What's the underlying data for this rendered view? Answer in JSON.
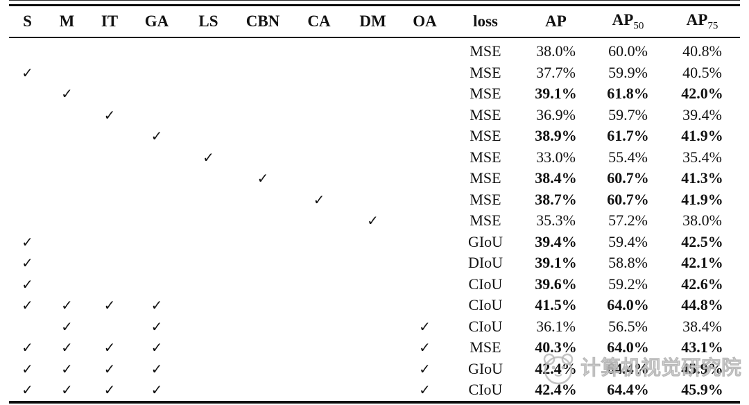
{
  "table": {
    "check_glyph": "✓",
    "columns": [
      {
        "key": "S",
        "label": "S"
      },
      {
        "key": "M",
        "label": "M"
      },
      {
        "key": "IT",
        "label": "IT"
      },
      {
        "key": "GA",
        "label": "GA"
      },
      {
        "key": "LS",
        "label": "LS"
      },
      {
        "key": "CBN",
        "label": "CBN"
      },
      {
        "key": "CA",
        "label": "CA"
      },
      {
        "key": "DM",
        "label": "DM"
      },
      {
        "key": "OA",
        "label": "OA"
      },
      {
        "key": "loss",
        "label": "loss"
      },
      {
        "key": "ap",
        "label": "AP"
      },
      {
        "key": "ap50",
        "label": "AP",
        "sub": "50"
      },
      {
        "key": "ap75",
        "label": "AP",
        "sub": "75"
      }
    ],
    "rows": [
      {
        "checks": [],
        "loss": "MSE",
        "ap": "38.0%",
        "ap50": "60.0%",
        "ap75": "40.8%",
        "bold": []
      },
      {
        "checks": [
          "S"
        ],
        "loss": "MSE",
        "ap": "37.7%",
        "ap50": "59.9%",
        "ap75": "40.5%",
        "bold": []
      },
      {
        "checks": [
          "M"
        ],
        "loss": "MSE",
        "ap": "39.1%",
        "ap50": "61.8%",
        "ap75": "42.0%",
        "bold": [
          "ap",
          "ap50",
          "ap75"
        ]
      },
      {
        "checks": [
          "IT"
        ],
        "loss": "MSE",
        "ap": "36.9%",
        "ap50": "59.7%",
        "ap75": "39.4%",
        "bold": []
      },
      {
        "checks": [
          "GA"
        ],
        "loss": "MSE",
        "ap": "38.9%",
        "ap50": "61.7%",
        "ap75": "41.9%",
        "bold": [
          "ap",
          "ap50",
          "ap75"
        ]
      },
      {
        "checks": [
          "LS"
        ],
        "loss": "MSE",
        "ap": "33.0%",
        "ap50": "55.4%",
        "ap75": "35.4%",
        "bold": []
      },
      {
        "checks": [
          "CBN"
        ],
        "loss": "MSE",
        "ap": "38.4%",
        "ap50": "60.7%",
        "ap75": "41.3%",
        "bold": [
          "ap",
          "ap50",
          "ap75"
        ]
      },
      {
        "checks": [
          "CA"
        ],
        "loss": "MSE",
        "ap": "38.7%",
        "ap50": "60.7%",
        "ap75": "41.9%",
        "bold": [
          "ap",
          "ap50",
          "ap75"
        ]
      },
      {
        "checks": [
          "DM"
        ],
        "loss": "MSE",
        "ap": "35.3%",
        "ap50": "57.2%",
        "ap75": "38.0%",
        "bold": []
      },
      {
        "checks": [
          "S"
        ],
        "loss": "GIoU",
        "ap": "39.4%",
        "ap50": "59.4%",
        "ap75": "42.5%",
        "bold": [
          "ap",
          "ap75"
        ]
      },
      {
        "checks": [
          "S"
        ],
        "loss": "DIoU",
        "ap": "39.1%",
        "ap50": "58.8%",
        "ap75": "42.1%",
        "bold": [
          "ap",
          "ap75"
        ]
      },
      {
        "checks": [
          "S"
        ],
        "loss": "CIoU",
        "ap": "39.6%",
        "ap50": "59.2%",
        "ap75": "42.6%",
        "bold": [
          "ap",
          "ap75"
        ]
      },
      {
        "checks": [
          "S",
          "M",
          "IT",
          "GA"
        ],
        "loss": "CIoU",
        "ap": "41.5%",
        "ap50": "64.0%",
        "ap75": "44.8%",
        "bold": [
          "ap",
          "ap50",
          "ap75"
        ]
      },
      {
        "checks": [
          "M",
          "GA",
          "OA"
        ],
        "loss": "CIoU",
        "ap": "36.1%",
        "ap50": "56.5%",
        "ap75": "38.4%",
        "bold": []
      },
      {
        "checks": [
          "S",
          "M",
          "IT",
          "GA",
          "OA"
        ],
        "loss": "MSE",
        "ap": "40.3%",
        "ap50": "64.0%",
        "ap75": "43.1%",
        "bold": [
          "ap",
          "ap50",
          "ap75"
        ]
      },
      {
        "checks": [
          "S",
          "M",
          "IT",
          "GA",
          "OA"
        ],
        "loss": "GIoU",
        "ap": "42.4%",
        "ap50": "64.4%",
        "ap75": "45.9%",
        "bold": [
          "ap",
          "ap50",
          "ap75"
        ]
      },
      {
        "checks": [
          "S",
          "M",
          "IT",
          "GA",
          "OA"
        ],
        "loss": "CIoU",
        "ap": "42.4%",
        "ap50": "64.4%",
        "ap75": "45.9%",
        "bold": [
          "ap",
          "ap50",
          "ap75"
        ]
      }
    ]
  },
  "watermark": {
    "text": "计算机视觉研究院",
    "logo": "panda-face",
    "color": "#c1c1c1"
  }
}
